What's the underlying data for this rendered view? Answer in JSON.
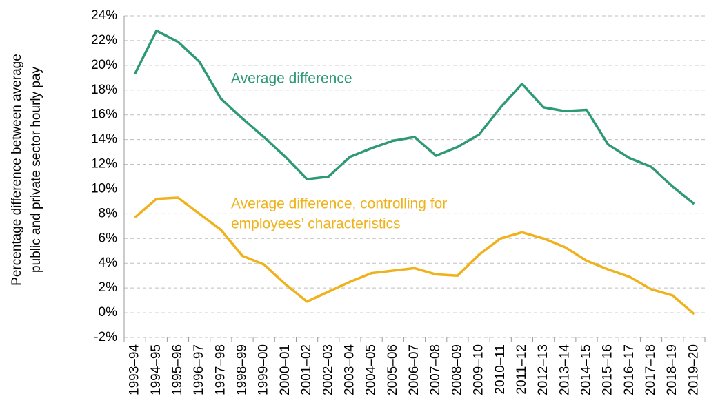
{
  "chart_data": {
    "type": "line",
    "ylabel": [
      "Percentage difference between average",
      "public and private sector hourly pay"
    ],
    "categories": [
      "1993–94",
      "1994–95",
      "1995–96",
      "1996–97",
      "1997–98",
      "1998–99",
      "1999–00",
      "2000–01",
      "2001–02",
      "2002–03",
      "2003–04",
      "2004–05",
      "2005–06",
      "2006–07",
      "2007–08",
      "2008–09",
      "2009–10",
      "2010–11",
      "2011–12",
      "2012–13",
      "2013–14",
      "2014–15",
      "2015–16",
      "2016–17",
      "2017–18",
      "2018–19",
      "2019–20"
    ],
    "series": [
      {
        "color": "#2e9a74",
        "values": [
          19.3,
          22.8,
          21.9,
          20.3,
          17.3,
          15.7,
          14.2,
          12.6,
          10.8,
          11.0,
          12.6,
          13.3,
          13.9,
          14.2,
          12.7,
          13.4,
          14.4,
          16.6,
          18.5,
          16.6,
          16.3,
          16.4,
          13.6,
          12.5,
          11.8,
          10.2,
          8.8
        ]
      },
      {
        "color": "#f0b21a",
        "values": [
          7.7,
          9.2,
          9.3,
          8.0,
          6.7,
          4.6,
          3.9,
          2.3,
          0.9,
          1.7,
          2.5,
          3.2,
          3.4,
          3.6,
          3.1,
          3.0,
          4.7,
          6.0,
          6.5,
          6.0,
          5.3,
          4.2,
          3.5,
          2.9,
          1.9,
          1.4,
          -0.1
        ]
      }
    ],
    "annotations": [
      {
        "lines": [
          "Average difference"
        ],
        "color": "#2e9a74"
      },
      {
        "lines": [
          "Average difference, controlling for",
          "employees’ characteristics"
        ],
        "color": "#f0b21a"
      }
    ],
    "ylim": [
      -2,
      24
    ],
    "yticks": [
      {
        "value": -2,
        "label": "-2%"
      },
      {
        "value": 0,
        "label": "0%"
      },
      {
        "value": 2,
        "label": "2%"
      },
      {
        "value": 4,
        "label": "4%"
      },
      {
        "value": 6,
        "label": "6%"
      },
      {
        "value": 8,
        "label": "8%"
      },
      {
        "value": 10,
        "label": "10%"
      },
      {
        "value": 12,
        "label": "12%"
      },
      {
        "value": 14,
        "label": "14%"
      },
      {
        "value": 16,
        "label": "16%"
      },
      {
        "value": 18,
        "label": "18%"
      },
      {
        "value": 20,
        "label": "20%"
      },
      {
        "value": 22,
        "label": "22%"
      },
      {
        "value": 24,
        "label": "24%"
      }
    ],
    "grid": true
  }
}
